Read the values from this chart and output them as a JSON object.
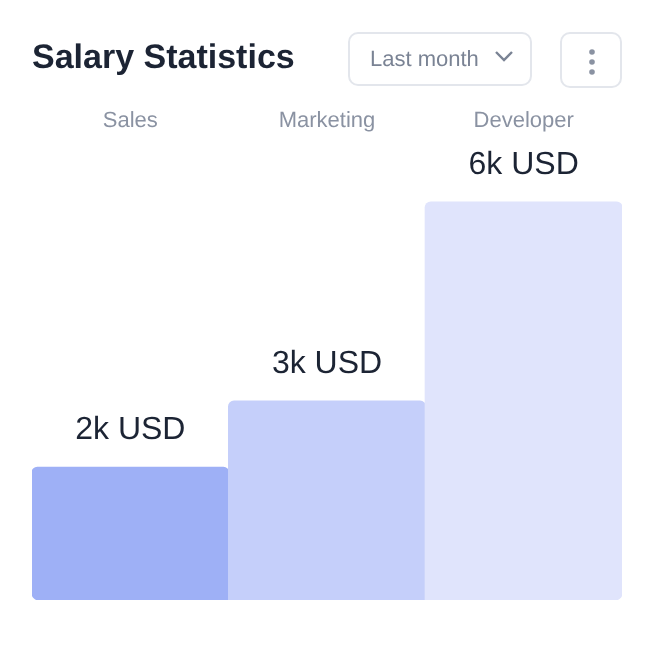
{
  "chart_data": {
    "type": "bar",
    "title": "Salary Statistics",
    "categories": [
      "Sales",
      "Marketing",
      "Developer"
    ],
    "values": [
      2,
      3,
      6
    ],
    "colors": [
      "#9eb0f6",
      "#c5cffa",
      "#e0e4fc"
    ],
    "value_labels": [
      "2k USD",
      "3k USD",
      "6k USD"
    ],
    "annotations": [
      "Last month"
    ],
    "tick_labels": "x"
  }
}
